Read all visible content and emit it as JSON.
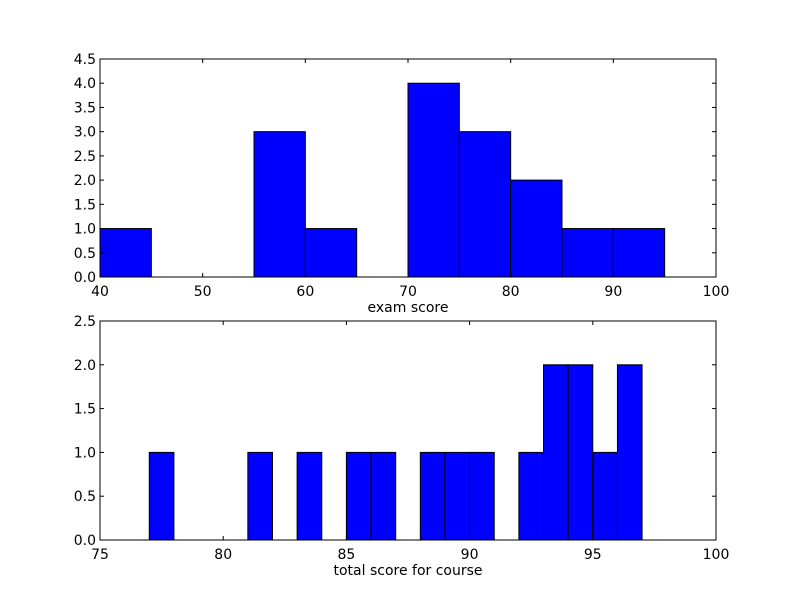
{
  "chart_data": [
    {
      "type": "bar",
      "title": "",
      "xlabel": "exam score",
      "ylabel": "",
      "xlim": [
        40,
        100
      ],
      "ylim": [
        0,
        4.5
      ],
      "xticks": [
        "40",
        "50",
        "60",
        "70",
        "80",
        "90",
        "100"
      ],
      "yticks": [
        "0.0",
        "0.5",
        "1.0",
        "1.5",
        "2.0",
        "2.5",
        "3.0",
        "3.5",
        "4.0",
        "4.5"
      ],
      "bins": [
        {
          "x0": 40,
          "x1": 45,
          "value": 1
        },
        {
          "x0": 55,
          "x1": 60,
          "value": 3
        },
        {
          "x0": 60,
          "x1": 65,
          "value": 1
        },
        {
          "x0": 70,
          "x1": 75,
          "value": 4
        },
        {
          "x0": 75,
          "x1": 80,
          "value": 3
        },
        {
          "x0": 80,
          "x1": 85,
          "value": 2
        },
        {
          "x0": 85,
          "x1": 90,
          "value": 1
        },
        {
          "x0": 90,
          "x1": 95,
          "value": 1
        }
      ],
      "bar_color": "#0000ff",
      "grid": false
    },
    {
      "type": "bar",
      "title": "",
      "xlabel": "total score for course",
      "ylabel": "",
      "xlim": [
        75,
        100
      ],
      "ylim": [
        0,
        2.5
      ],
      "xticks": [
        "75",
        "80",
        "85",
        "90",
        "95",
        "100"
      ],
      "yticks": [
        "0.0",
        "0.5",
        "1.0",
        "1.5",
        "2.0",
        "2.5"
      ],
      "bins": [
        {
          "x0": 77,
          "x1": 78,
          "value": 1
        },
        {
          "x0": 81,
          "x1": 82,
          "value": 1
        },
        {
          "x0": 83,
          "x1": 84,
          "value": 1
        },
        {
          "x0": 85,
          "x1": 86,
          "value": 1
        },
        {
          "x0": 86,
          "x1": 87,
          "value": 1
        },
        {
          "x0": 88,
          "x1": 89,
          "value": 1
        },
        {
          "x0": 89,
          "x1": 90,
          "value": 1
        },
        {
          "x0": 90,
          "x1": 91,
          "value": 1
        },
        {
          "x0": 92,
          "x1": 93,
          "value": 1
        },
        {
          "x0": 93,
          "x1": 94,
          "value": 2
        },
        {
          "x0": 94,
          "x1": 95,
          "value": 2
        },
        {
          "x0": 95,
          "x1": 96,
          "value": 1
        },
        {
          "x0": 96,
          "x1": 97,
          "value": 2
        }
      ],
      "bar_color": "#0000ff",
      "grid": false
    }
  ]
}
